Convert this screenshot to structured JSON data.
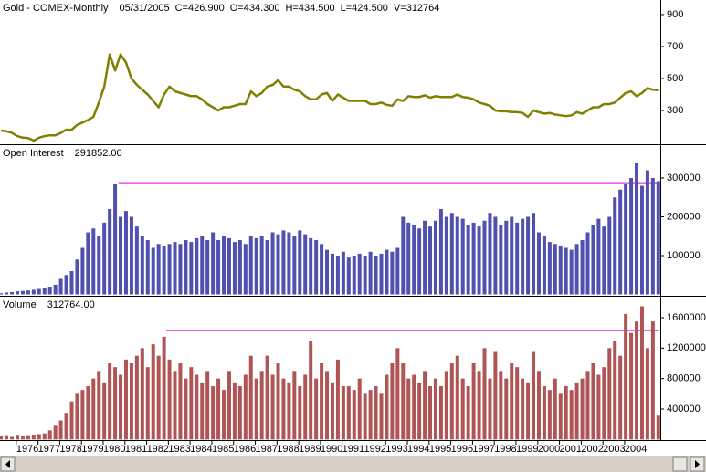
{
  "chart_data": [
    {
      "type": "line",
      "title": "Gold - COMEX-Monthly",
      "header": [
        "05/31/2005",
        "C=426.900",
        "O=434.300",
        "H=434.500",
        "L=424.500",
        "V=312764"
      ],
      "color": "#808000",
      "xlim": [
        1975.25,
        2005.6
      ],
      "ylim": [
        89,
        991
      ],
      "yticks": [
        300,
        500,
        700,
        900
      ],
      "x": [
        1975.3,
        1975.55,
        1975.8,
        1976.05,
        1976.3,
        1976.55,
        1976.8,
        1977.05,
        1977.3,
        1977.55,
        1977.8,
        1978.05,
        1978.3,
        1978.55,
        1978.8,
        1979.05,
        1979.3,
        1979.55,
        1979.8,
        1980.05,
        1980.3,
        1980.55,
        1980.8,
        1981.05,
        1981.3,
        1981.55,
        1981.8,
        1982.05,
        1982.3,
        1982.55,
        1982.8,
        1983.05,
        1983.3,
        1983.55,
        1983.8,
        1984.05,
        1984.3,
        1984.55,
        1984.8,
        1985.05,
        1985.3,
        1985.55,
        1985.8,
        1986.05,
        1986.3,
        1986.55,
        1986.8,
        1987.05,
        1987.3,
        1987.55,
        1987.8,
        1988.05,
        1988.3,
        1988.55,
        1988.8,
        1989.05,
        1989.3,
        1989.55,
        1989.8,
        1990.05,
        1990.3,
        1990.55,
        1990.8,
        1991.05,
        1991.3,
        1991.55,
        1991.8,
        1992.05,
        1992.3,
        1992.55,
        1992.8,
        1993.05,
        1993.3,
        1993.55,
        1993.8,
        1994.05,
        1994.3,
        1994.55,
        1994.8,
        1995.05,
        1995.3,
        1995.55,
        1995.8,
        1996.05,
        1996.3,
        1996.55,
        1996.8,
        1997.05,
        1997.3,
        1997.55,
        1997.8,
        1998.05,
        1998.3,
        1998.55,
        1998.8,
        1999.05,
        1999.3,
        1999.55,
        1999.8,
        2000.05,
        2000.3,
        2000.55,
        2000.8,
        2001.05,
        2001.3,
        2001.55,
        2001.8,
        2002.05,
        2002.3,
        2002.55,
        2002.8,
        2003.05,
        2003.3,
        2003.55,
        2003.8,
        2004.05,
        2004.3,
        2004.55,
        2004.8,
        2005.05,
        2005.3,
        2005.55
      ],
      "values": [
        175,
        170,
        160,
        140,
        130,
        128,
        112,
        130,
        140,
        145,
        145,
        160,
        180,
        180,
        210,
        225,
        240,
        260,
        350,
        450,
        650,
        550,
        650,
        600,
        500,
        460,
        430,
        400,
        360,
        320,
        400,
        450,
        420,
        410,
        400,
        390,
        390,
        370,
        340,
        320,
        300,
        320,
        320,
        330,
        340,
        340,
        420,
        390,
        410,
        450,
        460,
        490,
        450,
        450,
        430,
        420,
        390,
        370,
        370,
        400,
        410,
        360,
        400,
        380,
        360,
        360,
        360,
        360,
        340,
        340,
        350,
        335,
        330,
        370,
        360,
        390,
        385,
        385,
        395,
        380,
        390,
        385,
        385,
        385,
        400,
        385,
        380,
        370,
        350,
        340,
        330,
        300,
        295,
        295,
        290,
        290,
        285,
        260,
        300,
        290,
        280,
        285,
        275,
        270,
        265,
        270,
        290,
        280,
        300,
        320,
        320,
        340,
        340,
        350,
        380,
        410,
        420,
        390,
        410,
        440,
        430,
        426.9
      ]
    },
    {
      "type": "bar",
      "title": "Open Interest",
      "header": [
        "291852.00"
      ],
      "header_color": "#0000c0",
      "color": "#5050b0",
      "xlim": [
        1975.25,
        2005.6
      ],
      "ylim": [
        -3500,
        384700
      ],
      "yticks": [
        100000,
        200000,
        300000
      ],
      "hline": {
        "value": 288000,
        "from_x": 1980.7,
        "color": "#e000e0"
      },
      "x": [
        1975.3,
        1975.55,
        1975.8,
        1976.05,
        1976.3,
        1976.55,
        1976.8,
        1977.05,
        1977.3,
        1977.55,
        1977.8,
        1978.05,
        1978.3,
        1978.55,
        1978.8,
        1979.05,
        1979.3,
        1979.55,
        1979.8,
        1980.05,
        1980.3,
        1980.55,
        1980.8,
        1981.05,
        1981.3,
        1981.55,
        1981.8,
        1982.05,
        1982.3,
        1982.55,
        1982.8,
        1983.05,
        1983.3,
        1983.55,
        1983.8,
        1984.05,
        1984.3,
        1984.55,
        1984.8,
        1985.05,
        1985.3,
        1985.55,
        1985.8,
        1986.05,
        1986.3,
        1986.55,
        1986.8,
        1987.05,
        1987.3,
        1987.55,
        1987.8,
        1988.05,
        1988.3,
        1988.55,
        1988.8,
        1989.05,
        1989.3,
        1989.55,
        1989.8,
        1990.05,
        1990.3,
        1990.55,
        1990.8,
        1991.05,
        1991.3,
        1991.55,
        1991.8,
        1992.05,
        1992.3,
        1992.55,
        1992.8,
        1993.05,
        1993.3,
        1993.55,
        1993.8,
        1994.05,
        1994.3,
        1994.55,
        1994.8,
        1995.05,
        1995.3,
        1995.55,
        1995.8,
        1996.05,
        1996.3,
        1996.55,
        1996.8,
        1997.05,
        1997.3,
        1997.55,
        1997.8,
        1998.05,
        1998.3,
        1998.55,
        1998.8,
        1999.05,
        1999.3,
        1999.55,
        1999.8,
        2000.05,
        2000.3,
        2000.55,
        2000.8,
        2001.05,
        2001.3,
        2001.55,
        2001.8,
        2002.05,
        2002.3,
        2002.55,
        2002.8,
        2003.05,
        2003.3,
        2003.55,
        2003.8,
        2004.05,
        2004.3,
        2004.55,
        2004.8,
        2005.05,
        2005.3,
        2005.55
      ],
      "values": [
        3000,
        5000,
        6000,
        8000,
        9000,
        10000,
        12000,
        14000,
        16000,
        20000,
        25000,
        40000,
        50000,
        60000,
        90000,
        120000,
        160000,
        170000,
        150000,
        185000,
        220000,
        285000,
        200000,
        215000,
        200000,
        175000,
        150000,
        140000,
        120000,
        130000,
        125000,
        130000,
        135000,
        130000,
        140000,
        135000,
        145000,
        150000,
        140000,
        160000,
        140000,
        150000,
        145000,
        135000,
        140000,
        130000,
        150000,
        145000,
        150000,
        140000,
        160000,
        155000,
        165000,
        160000,
        150000,
        165000,
        155000,
        145000,
        140000,
        130000,
        115000,
        105000,
        100000,
        110000,
        95000,
        100000,
        105000,
        100000,
        110000,
        100000,
        105000,
        115000,
        110000,
        120000,
        200000,
        185000,
        180000,
        170000,
        190000,
        175000,
        190000,
        220000,
        200000,
        210000,
        200000,
        195000,
        180000,
        185000,
        175000,
        190000,
        210000,
        200000,
        180000,
        190000,
        200000,
        185000,
        195000,
        200000,
        210000,
        160000,
        150000,
        135000,
        130000,
        125000,
        120000,
        115000,
        130000,
        140000,
        160000,
        180000,
        195000,
        175000,
        200000,
        250000,
        270000,
        285000,
        300000,
        340000,
        280000,
        320000,
        300000,
        291852
      ]
    },
    {
      "type": "bar",
      "title": "Volume",
      "header": [
        "312764.00"
      ],
      "header_color": "#c00000",
      "color": "#b05555",
      "xlim": [
        1975.25,
        2005.6
      ],
      "ylim": [
        -8000,
        1876000
      ],
      "yticks": [
        400000,
        800000,
        1200000,
        1600000
      ],
      "xticks": [
        1976,
        1977,
        1978,
        1979,
        1980,
        1981,
        1982,
        1983,
        1984,
        1985,
        1986,
        1987,
        1988,
        1989,
        1990,
        1991,
        1992,
        1993,
        1994,
        1995,
        1996,
        1997,
        1998,
        1999,
        2000,
        2001,
        2002,
        2003,
        2004
      ],
      "hline": {
        "value": 1430000,
        "from_x": 1982.9,
        "color": "#e000e0"
      },
      "x": [
        1975.3,
        1975.55,
        1975.8,
        1976.05,
        1976.3,
        1976.55,
        1976.8,
        1977.05,
        1977.3,
        1977.55,
        1977.8,
        1978.05,
        1978.3,
        1978.55,
        1978.8,
        1979.05,
        1979.3,
        1979.55,
        1979.8,
        1980.05,
        1980.3,
        1980.55,
        1980.8,
        1981.05,
        1981.3,
        1981.55,
        1981.8,
        1982.05,
        1982.3,
        1982.55,
        1982.8,
        1983.05,
        1983.3,
        1983.55,
        1983.8,
        1984.05,
        1984.3,
        1984.55,
        1984.8,
        1985.05,
        1985.3,
        1985.55,
        1985.8,
        1986.05,
        1986.3,
        1986.55,
        1986.8,
        1987.05,
        1987.3,
        1987.55,
        1987.8,
        1988.05,
        1988.3,
        1988.55,
        1988.8,
        1989.05,
        1989.3,
        1989.55,
        1989.8,
        1990.05,
        1990.3,
        1990.55,
        1990.8,
        1991.05,
        1991.3,
        1991.55,
        1991.8,
        1992.05,
        1992.3,
        1992.55,
        1992.8,
        1993.05,
        1993.3,
        1993.55,
        1993.8,
        1994.05,
        1994.3,
        1994.55,
        1994.8,
        1995.05,
        1995.3,
        1995.55,
        1995.8,
        1996.05,
        1996.3,
        1996.55,
        1996.8,
        1997.05,
        1997.3,
        1997.55,
        1997.8,
        1998.05,
        1998.3,
        1998.55,
        1998.8,
        1999.05,
        1999.3,
        1999.55,
        1999.8,
        2000.05,
        2000.3,
        2000.55,
        2000.8,
        2001.05,
        2001.3,
        2001.55,
        2001.8,
        2002.05,
        2002.3,
        2002.55,
        2002.8,
        2003.05,
        2003.3,
        2003.55,
        2003.8,
        2004.05,
        2004.3,
        2004.55,
        2004.8,
        2005.05,
        2005.3,
        2005.55
      ],
      "values": [
        40000,
        45000,
        35000,
        50000,
        40000,
        45000,
        60000,
        70000,
        80000,
        120000,
        180000,
        250000,
        350000,
        500000,
        600000,
        650000,
        700000,
        800000,
        900000,
        750000,
        1000000,
        950000,
        850000,
        1050000,
        1000000,
        1100000,
        1200000,
        950000,
        1250000,
        1100000,
        1350000,
        1050000,
        900000,
        1000000,
        800000,
        950000,
        850000,
        750000,
        900000,
        700000,
        800000,
        650000,
        900000,
        750000,
        700000,
        850000,
        1100000,
        800000,
        900000,
        1100000,
        850000,
        1000000,
        800000,
        750000,
        900000,
        700000,
        850000,
        1300000,
        800000,
        1000000,
        900000,
        750000,
        1050000,
        700000,
        700000,
        650000,
        800000,
        600000,
        650000,
        700000,
        600000,
        850000,
        1000000,
        1200000,
        1000000,
        800000,
        850000,
        750000,
        900000,
        700000,
        800000,
        700000,
        900000,
        1000000,
        1100000,
        800000,
        700000,
        1000000,
        900000,
        1200000,
        800000,
        1150000,
        900000,
        800000,
        1000000,
        950000,
        800000,
        750000,
        1150000,
        900000,
        700000,
        650000,
        800000,
        600000,
        700000,
        650000,
        750000,
        800000,
        900000,
        1000000,
        850000,
        950000,
        1200000,
        1300000,
        1100000,
        1650000,
        1400000,
        1550000,
        1750000,
        1200000,
        1550000,
        312764
      ]
    }
  ]
}
